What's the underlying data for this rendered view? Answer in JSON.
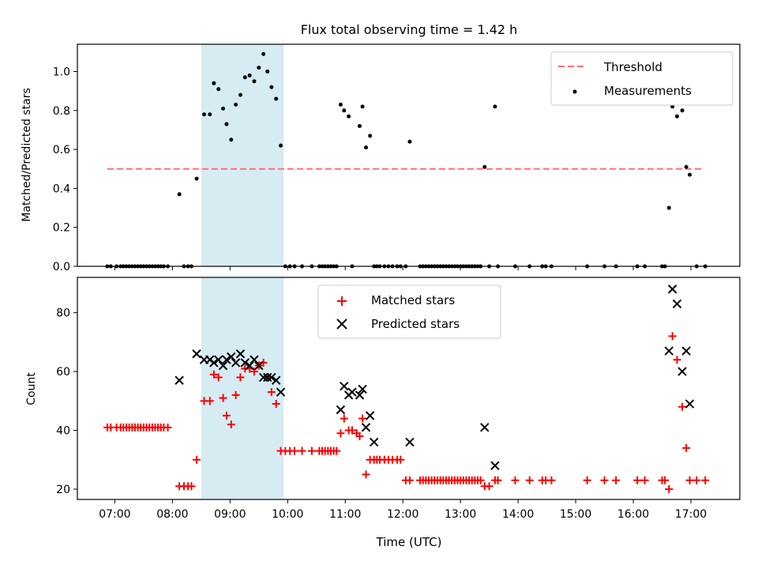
{
  "chart_data": [
    {
      "type": "scatter",
      "title": "Flux total observing time = 1.42 h",
      "xlabel": "",
      "ylabel": "Matched/Predicted stars",
      "xlim": [
        6.35,
        17.85
      ],
      "ylim": [
        0.0,
        1.14
      ],
      "yticks": [
        0.0,
        0.2,
        0.4,
        0.6,
        0.8,
        1.0
      ],
      "shaded_span": [
        8.5,
        9.93
      ],
      "legend_position": "top-right",
      "threshold": {
        "name": "Threshold",
        "y": 0.5,
        "x_range": [
          6.87,
          17.2
        ],
        "color": "#ff7070"
      },
      "series": [
        {
          "name": "Measurements",
          "marker": "dot",
          "color": "#000000",
          "x": [
            6.87,
            6.93,
            7.03,
            7.1,
            7.15,
            7.2,
            7.25,
            7.3,
            7.35,
            7.4,
            7.45,
            7.5,
            7.55,
            7.6,
            7.65,
            7.7,
            7.75,
            7.8,
            7.85,
            7.92,
            8.12,
            8.2,
            8.27,
            8.33,
            8.42,
            8.55,
            8.65,
            8.72,
            8.8,
            8.88,
            8.94,
            9.02,
            9.1,
            9.18,
            9.26,
            9.34,
            9.42,
            9.5,
            9.58,
            9.65,
            9.72,
            9.8,
            9.88,
            9.96,
            10.04,
            10.12,
            10.25,
            10.42,
            10.55,
            10.6,
            10.65,
            10.7,
            10.75,
            10.8,
            10.85,
            10.92,
            10.98,
            11.06,
            11.12,
            11.25,
            11.3,
            11.36,
            11.43,
            11.5,
            11.55,
            11.6,
            11.68,
            11.75,
            11.82,
            11.9,
            11.96,
            12.05,
            12.12,
            12.3,
            12.35,
            12.4,
            12.45,
            12.5,
            12.55,
            12.6,
            12.65,
            12.7,
            12.75,
            12.8,
            12.85,
            12.9,
            12.95,
            13.0,
            13.05,
            13.1,
            13.15,
            13.2,
            13.25,
            13.3,
            13.35,
            13.42,
            13.5,
            13.6,
            13.65,
            13.95,
            14.2,
            14.42,
            14.48,
            14.58,
            15.2,
            15.5,
            15.7,
            16.07,
            16.2,
            16.5,
            16.55,
            16.62,
            16.68,
            16.76,
            16.85,
            16.92,
            16.98,
            17.1,
            17.25
          ],
          "y": [
            0,
            0,
            0,
            0,
            0,
            0,
            0,
            0,
            0,
            0,
            0,
            0,
            0,
            0,
            0,
            0,
            0,
            0,
            0,
            0,
            0.37,
            0,
            0,
            0,
            0.45,
            0.78,
            0.78,
            0.94,
            0.91,
            0.81,
            0.73,
            0.65,
            0.83,
            0.88,
            0.97,
            0.98,
            0.95,
            1.02,
            1.09,
            1.0,
            0.92,
            0.86,
            0.62,
            0,
            0,
            0,
            0,
            0,
            0,
            0,
            0,
            0,
            0,
            0,
            0,
            0.83,
            0.8,
            0.77,
            0,
            0.72,
            0.82,
            0.61,
            0.67,
            0,
            0,
            0,
            0,
            0,
            0,
            0,
            0,
            0,
            0.64,
            0,
            0,
            0,
            0,
            0,
            0,
            0,
            0,
            0,
            0,
            0,
            0,
            0,
            0,
            0,
            0,
            0,
            0,
            0,
            0,
            0,
            0,
            0.51,
            0,
            0.82,
            0,
            0,
            0,
            0,
            0,
            0,
            0,
            0,
            0,
            0,
            0,
            0,
            0,
            0.3,
            0.82,
            0.77,
            0.8,
            0.51,
            0.47,
            0,
            0
          ]
        }
      ]
    },
    {
      "type": "scatter",
      "title": "",
      "xlabel": "Time (UTC)",
      "ylabel": "Count",
      "xlim": [
        6.35,
        17.85
      ],
      "ylim": [
        16.5,
        92
      ],
      "yticks": [
        20,
        40,
        60,
        80
      ],
      "xticks": [
        "07:00",
        "08:00",
        "09:00",
        "10:00",
        "11:00",
        "12:00",
        "13:00",
        "14:00",
        "15:00",
        "16:00",
        "17:00"
      ],
      "xtick_values": [
        7,
        8,
        9,
        10,
        11,
        12,
        13,
        14,
        15,
        16,
        17
      ],
      "shaded_span": [
        8.5,
        9.93
      ],
      "legend_position": "upper center",
      "series": [
        {
          "name": "Matched stars",
          "marker": "plus",
          "color": "#ff0000",
          "x": [
            6.87,
            6.93,
            7.03,
            7.1,
            7.15,
            7.2,
            7.25,
            7.3,
            7.35,
            7.4,
            7.45,
            7.5,
            7.55,
            7.6,
            7.65,
            7.7,
            7.75,
            7.8,
            7.85,
            7.92,
            8.12,
            8.2,
            8.27,
            8.33,
            8.42,
            8.55,
            8.65,
            8.72,
            8.8,
            8.88,
            8.94,
            9.02,
            9.1,
            9.18,
            9.26,
            9.34,
            9.42,
            9.5,
            9.58,
            9.65,
            9.72,
            9.8,
            9.88,
            9.96,
            10.04,
            10.12,
            10.25,
            10.42,
            10.55,
            10.6,
            10.65,
            10.7,
            10.75,
            10.8,
            10.85,
            10.92,
            10.98,
            11.06,
            11.12,
            11.2,
            11.25,
            11.3,
            11.36,
            11.43,
            11.5,
            11.55,
            11.6,
            11.68,
            11.75,
            11.82,
            11.9,
            11.96,
            12.05,
            12.12,
            12.3,
            12.35,
            12.4,
            12.45,
            12.5,
            12.55,
            12.6,
            12.65,
            12.7,
            12.75,
            12.8,
            12.85,
            12.9,
            12.95,
            13.0,
            13.05,
            13.1,
            13.15,
            13.2,
            13.25,
            13.3,
            13.35,
            13.42,
            13.5,
            13.6,
            13.65,
            13.95,
            14.2,
            14.42,
            14.48,
            14.58,
            15.2,
            15.5,
            15.7,
            16.07,
            16.2,
            16.5,
            16.55,
            16.62,
            16.68,
            16.76,
            16.85,
            16.92,
            16.98,
            17.1,
            17.25
          ],
          "y": [
            41,
            41,
            41,
            41,
            41,
            41,
            41,
            41,
            41,
            41,
            41,
            41,
            41,
            41,
            41,
            41,
            41,
            41,
            41,
            41,
            21,
            21,
            21,
            21,
            30,
            50,
            50,
            59,
            58,
            51,
            45,
            42,
            52,
            58,
            61,
            61,
            60,
            62,
            63,
            58,
            53,
            49,
            33,
            33,
            33,
            33,
            33,
            33,
            33,
            33,
            33,
            33,
            33,
            33,
            33,
            39,
            44,
            40,
            40,
            39,
            38,
            44,
            25,
            30,
            30,
            30,
            30,
            30,
            30,
            30,
            30,
            30,
            23,
            23,
            23,
            23,
            23,
            23,
            23,
            23,
            23,
            23,
            23,
            23,
            23,
            23,
            23,
            23,
            23,
            23,
            23,
            23,
            23,
            23,
            23,
            23,
            21,
            21,
            23,
            23,
            23,
            23,
            23,
            23,
            23,
            23,
            23,
            23,
            23,
            23,
            23,
            23,
            20,
            72,
            64,
            48,
            34,
            23,
            23,
            23
          ]
        },
        {
          "name": "Predicted stars",
          "marker": "x",
          "color": "#000000",
          "x": [
            8.12,
            8.42,
            8.55,
            8.65,
            8.72,
            8.8,
            8.88,
            8.94,
            9.02,
            9.1,
            9.18,
            9.26,
            9.34,
            9.42,
            9.5,
            9.58,
            9.65,
            9.72,
            9.8,
            9.88,
            10.92,
            10.98,
            11.06,
            11.12,
            11.25,
            11.3,
            11.36,
            11.43,
            11.5,
            12.12,
            13.42,
            13.6,
            16.62,
            16.68,
            16.76,
            16.85,
            16.92,
            16.98
          ],
          "y": [
            57,
            66,
            64,
            64,
            63,
            64,
            62,
            64,
            65,
            63,
            66,
            63,
            62,
            64,
            62,
            58,
            58,
            58,
            57,
            53,
            47,
            55,
            52,
            53,
            52,
            54,
            41,
            45,
            36,
            36,
            41,
            28,
            67,
            88,
            83,
            60,
            67,
            49
          ]
        }
      ]
    }
  ]
}
